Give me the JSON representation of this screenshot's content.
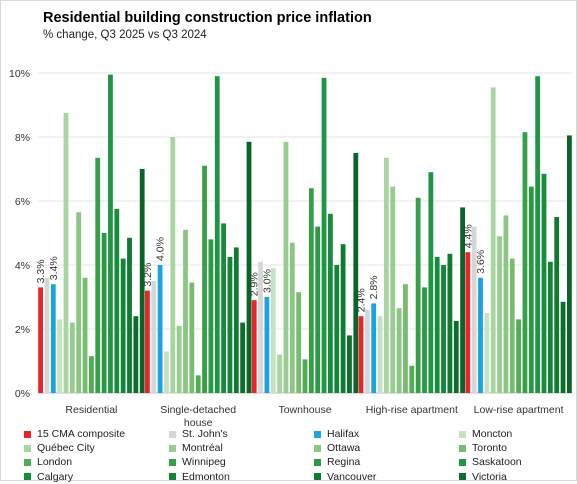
{
  "chart_data": {
    "type": "bar",
    "title": "Residential building construction price inflation",
    "subtitle": "% change, Q3 2025 vs Q3 2024",
    "categories": [
      "Residential",
      "Single-detached house",
      "Townhouse",
      "High-rise apartment",
      "Low-rise apartment"
    ],
    "category_lines": [
      [
        "Residential"
      ],
      [
        "Single-detached",
        "house"
      ],
      [
        "Townhouse"
      ],
      [
        "High-rise apartment"
      ],
      [
        "Low-rise apartment"
      ]
    ],
    "ylim": [
      0,
      10
    ],
    "yticks": [
      0,
      2,
      4,
      6,
      8,
      10
    ],
    "ytick_labels": [
      "0%",
      "2%",
      "4%",
      "6%",
      "8%",
      "10%"
    ],
    "legend_position": "bottom",
    "grid": true,
    "series": [
      {
        "name": "15 CMA composite",
        "color": "#e8252b",
        "values": [
          3.3,
          3.2,
          2.9,
          2.4,
          4.4
        ],
        "labels": [
          "3.3%",
          "3.2%",
          "2.9%",
          "2.4%",
          "4.4%"
        ]
      },
      {
        "name": "St. John's",
        "color": "#d6d6d6",
        "values": [
          3.6,
          3.5,
          4.1,
          2.6,
          5.2
        ]
      },
      {
        "name": "Halifax",
        "color": "#1aa3e0",
        "values": [
          3.4,
          4.0,
          3.0,
          2.8,
          3.6
        ],
        "labels": [
          "3.4%",
          "4.0%",
          "3.0%",
          "2.8%",
          "3.6%"
        ]
      },
      {
        "name": "Moncton",
        "color": "#c7e2c3",
        "values": [
          2.3,
          1.3,
          3.9,
          2.4,
          2.5
        ]
      },
      {
        "name": "Québec City",
        "color": "#a9d5a2",
        "values": [
          8.75,
          8.0,
          1.2,
          7.35,
          9.55
        ]
      },
      {
        "name": "Montréal",
        "color": "#98cc90",
        "values": [
          2.2,
          2.1,
          7.85,
          6.45,
          4.9
        ]
      },
      {
        "name": "Ottawa",
        "color": "#8cc684",
        "values": [
          5.65,
          5.1,
          4.7,
          2.65,
          5.55
        ]
      },
      {
        "name": "Toronto",
        "color": "#78bc70",
        "values": [
          3.6,
          3.45,
          3.15,
          3.4,
          4.2
        ]
      },
      {
        "name": "London",
        "color": "#52ab55",
        "values": [
          1.15,
          0.55,
          1.05,
          0.85,
          2.3
        ]
      },
      {
        "name": "Winnipeg",
        "color": "#36a049",
        "values": [
          7.35,
          7.1,
          6.4,
          6.1,
          8.15
        ]
      },
      {
        "name": "Regina",
        "color": "#2a9a46",
        "values": [
          5.0,
          4.8,
          5.2,
          3.3,
          6.45
        ]
      },
      {
        "name": "Saskatoon",
        "color": "#1f9643",
        "values": [
          9.95,
          9.9,
          9.85,
          6.9,
          9.9
        ]
      },
      {
        "name": "Calgary",
        "color": "#188c3d",
        "values": [
          5.75,
          5.3,
          5.6,
          4.25,
          6.85
        ]
      },
      {
        "name": "Edmonton",
        "color": "#138537",
        "values": [
          4.2,
          4.25,
          4.0,
          4.0,
          4.1
        ]
      },
      {
        "name": "Vancouver",
        "color": "#0f7a31",
        "values": [
          4.85,
          4.55,
          4.65,
          4.35,
          5.5
        ]
      },
      {
        "name": "Victoria",
        "color": "#0b6e2b",
        "values": [
          2.4,
          2.2,
          1.8,
          2.25,
          2.85
        ]
      },
      {
        "name": "",
        "color": "#0a6428",
        "values": [
          7.0,
          7.85,
          7.5,
          5.8,
          8.05
        ]
      }
    ]
  }
}
